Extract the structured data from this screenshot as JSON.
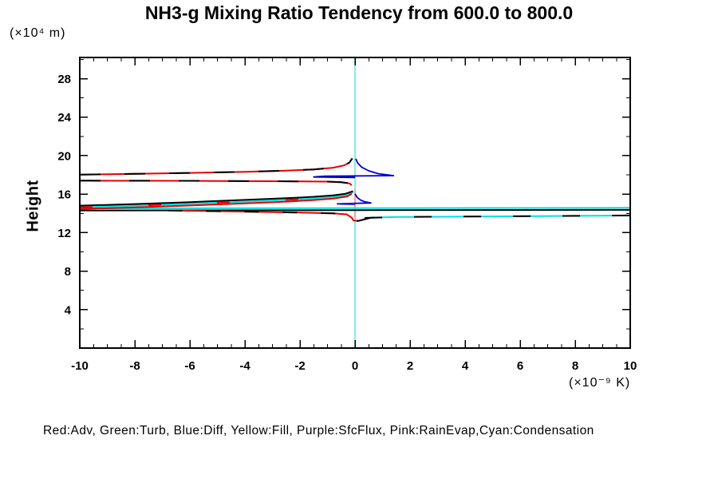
{
  "header": {
    "title": "NH3-g Mixing Ratio Tendency from 600.0 to 800.0"
  },
  "legend": {
    "caption": "Red:Adv, Green:Turb, Blue:Diff, Yellow:Fill, Purple:SfcFlux, Pink:RainEvap,Cyan:Condensation"
  },
  "chart_data": {
    "type": "line",
    "title": "NH3-g Mixing Ratio Tendency from 600.0 to 800.0",
    "ylabel": "Height",
    "ylabel_unit": "(×10⁴ m)",
    "xlabel_unit": "(×10⁻⁹ K)",
    "xlim": [
      -10,
      10
    ],
    "ylim": [
      0,
      30.2
    ],
    "x_major_ticks": [
      -10,
      -8,
      -6,
      -4,
      -2,
      0,
      2,
      4,
      6,
      8,
      10
    ],
    "x_minor_step": 0.5,
    "y_major_ticks": [
      4,
      8,
      12,
      16,
      20,
      24,
      28
    ],
    "y_minor_step": 2,
    "grid": false,
    "legend_position": "bottom",
    "colors": {
      "red": "#e60000",
      "blue": "#0000cc",
      "cyan": "#00dfdf",
      "black": "#000000",
      "pink": "#ff9a9a",
      "zero_line": "#8aeaea"
    },
    "series": [
      {
        "name": "zero-reference-vertical",
        "color": "#8aeaea",
        "width": 2,
        "points": [
          [
            0,
            0
          ],
          [
            0,
            30.2
          ]
        ]
      },
      {
        "name": "rainevap-pink-zero-segment",
        "color": "#ff9a9a",
        "width": 2,
        "points": [
          [
            0,
            13.55
          ],
          [
            0,
            16.5
          ]
        ]
      },
      {
        "name": "condensation-cyan-horizontal",
        "color": "#00dfdf",
        "width": 2,
        "points": [
          [
            -10,
            14.52
          ],
          [
            10,
            14.58
          ]
        ]
      },
      {
        "name": "black-horizontal",
        "color": "#000000",
        "width": 2,
        "points": [
          [
            -10,
            14.3
          ],
          [
            10,
            14.36
          ]
        ]
      },
      {
        "name": "cyan-rising-bundle",
        "color": "#00dfdf",
        "width": 2,
        "points": [
          [
            -10,
            14.63
          ],
          [
            -8,
            14.8
          ],
          [
            -6,
            15.0
          ],
          [
            -4,
            15.22
          ],
          [
            -2.5,
            15.4
          ],
          [
            -1.5,
            15.55
          ],
          [
            -0.8,
            15.7
          ],
          [
            -0.35,
            15.88
          ],
          [
            -0.07,
            16.18
          ]
        ]
      },
      {
        "name": "black-rising-bundle",
        "color": "#000000",
        "width": 2,
        "points": [
          [
            -10,
            14.8
          ],
          [
            -8,
            14.97
          ],
          [
            -6,
            15.17
          ],
          [
            -4,
            15.4
          ],
          [
            -2.5,
            15.57
          ],
          [
            -1.5,
            15.72
          ],
          [
            -0.8,
            15.87
          ],
          [
            -0.35,
            16.04
          ],
          [
            -0.07,
            16.3
          ]
        ]
      },
      {
        "name": "adv-red-rising-bundle",
        "color": "#e60000",
        "width": 2,
        "points": [
          [
            -10,
            14.46
          ],
          [
            -8,
            14.62
          ],
          [
            -6,
            14.82
          ],
          [
            -4,
            15.04
          ],
          [
            -2.5,
            15.22
          ],
          [
            -1.5,
            15.38
          ],
          [
            -0.8,
            15.54
          ],
          [
            -0.3,
            15.74
          ],
          [
            -0.12,
            16.04
          ]
        ]
      },
      {
        "name": "adv-red-lower",
        "color": "#e60000",
        "width": 2,
        "points": [
          [
            -6.8,
            14.3
          ],
          [
            -4,
            14.18
          ],
          [
            -2,
            14.08
          ],
          [
            -0.8,
            14.0
          ],
          [
            -0.3,
            13.9
          ],
          [
            -0.12,
            13.55
          ],
          [
            -0.05,
            13.25
          ],
          [
            0.12,
            13.22
          ],
          [
            0.3,
            13.35
          ],
          [
            0.5,
            13.5
          ],
          [
            0.68,
            13.6
          ]
        ]
      },
      {
        "name": "condensation-cyan-lower-right",
        "color": "#00dfdf",
        "width": 2,
        "points": [
          [
            0.35,
            13.52
          ],
          [
            1.5,
            13.62
          ],
          [
            5,
            13.68
          ],
          [
            10,
            13.78
          ]
        ]
      },
      {
        "name": "adv-red-upper",
        "color": "#e60000",
        "width": 2,
        "points": [
          [
            -10,
            18.02
          ],
          [
            -8,
            18.1
          ],
          [
            -6,
            18.2
          ],
          [
            -4,
            18.32
          ],
          [
            -2.5,
            18.44
          ],
          [
            -1.5,
            18.56
          ],
          [
            -0.8,
            18.74
          ],
          [
            -0.4,
            18.98
          ],
          [
            -0.2,
            19.28
          ],
          [
            -0.1,
            19.72
          ]
        ]
      },
      {
        "name": "adv-red-mid",
        "color": "#e60000",
        "width": 2,
        "points": [
          [
            -10,
            17.4
          ],
          [
            -6,
            17.38
          ],
          [
            -3,
            17.34
          ],
          [
            -1,
            17.3
          ],
          [
            -0.5,
            17.24
          ],
          [
            -0.2,
            17.12
          ],
          [
            -0.12,
            16.92
          ]
        ]
      },
      {
        "name": "diff-blue-upper-spike",
        "color": "#0000cc",
        "width": 1.8,
        "points": [
          [
            0.03,
            19.68
          ],
          [
            0.1,
            19.22
          ],
          [
            0.25,
            18.78
          ],
          [
            0.5,
            18.42
          ],
          [
            0.85,
            18.12
          ],
          [
            1.4,
            17.92
          ],
          [
            -1.1,
            17.86
          ],
          [
            -1.5,
            17.78
          ],
          [
            0,
            17.73
          ]
        ]
      },
      {
        "name": "diff-blue-mid-spike",
        "color": "#0000cc",
        "width": 1.8,
        "points": [
          [
            0,
            16.02
          ],
          [
            0.08,
            15.65
          ],
          [
            0.2,
            15.38
          ],
          [
            0.36,
            15.2
          ],
          [
            0.58,
            15.08
          ],
          [
            -0.64,
            14.98
          ],
          [
            0,
            14.93
          ]
        ]
      },
      {
        "name": "dashed-black-over-red-upper",
        "color": "#000000",
        "width": 2,
        "dash": "26 30",
        "points": [
          [
            -10,
            18.02
          ],
          [
            -8,
            18.1
          ],
          [
            -6,
            18.2
          ],
          [
            -4,
            18.32
          ],
          [
            -2.5,
            18.44
          ],
          [
            -1.5,
            18.56
          ],
          [
            -0.8,
            18.74
          ],
          [
            -0.4,
            18.98
          ],
          [
            -0.2,
            19.28
          ],
          [
            -0.1,
            19.72
          ]
        ]
      },
      {
        "name": "dashed-black-over-red-mid",
        "color": "#000000",
        "width": 2,
        "dash": "26 36",
        "points": [
          [
            -10,
            17.4
          ],
          [
            -6,
            17.38
          ],
          [
            -3,
            17.34
          ],
          [
            -1,
            17.3
          ],
          [
            -0.5,
            17.24
          ],
          [
            -0.2,
            17.12
          ],
          [
            -0.12,
            16.92
          ]
        ]
      },
      {
        "name": "dashed-black-over-red-lower",
        "color": "#000000",
        "width": 2,
        "dash": "18 30",
        "points": [
          [
            -6.8,
            14.3
          ],
          [
            -4,
            14.18
          ],
          [
            -2,
            14.08
          ],
          [
            -0.8,
            14.0
          ],
          [
            -0.3,
            13.9
          ],
          [
            -0.12,
            13.55
          ],
          [
            -0.05,
            13.25
          ],
          [
            0.12,
            13.22
          ],
          [
            0.3,
            13.35
          ],
          [
            0.5,
            13.5
          ],
          [
            0.68,
            13.6
          ]
        ]
      },
      {
        "name": "dashed-black-over-cyan-lower-right",
        "color": "#000000",
        "width": 2,
        "dash": "22 40",
        "points": [
          [
            0.35,
            13.52
          ],
          [
            1.5,
            13.62
          ],
          [
            5,
            13.68
          ],
          [
            10,
            13.78
          ]
        ]
      },
      {
        "name": "dashed-red-over-cyan-bundle",
        "color": "#e60000",
        "width": 2,
        "dash": "16 70",
        "points": [
          [
            -10,
            14.63
          ],
          [
            -8,
            14.8
          ],
          [
            -6,
            15.0
          ],
          [
            -4,
            15.22
          ],
          [
            -2.5,
            15.4
          ],
          [
            -1.5,
            15.55
          ],
          [
            -0.8,
            15.7
          ],
          [
            -0.35,
            15.88
          ],
          [
            -0.07,
            16.18
          ]
        ]
      }
    ]
  }
}
